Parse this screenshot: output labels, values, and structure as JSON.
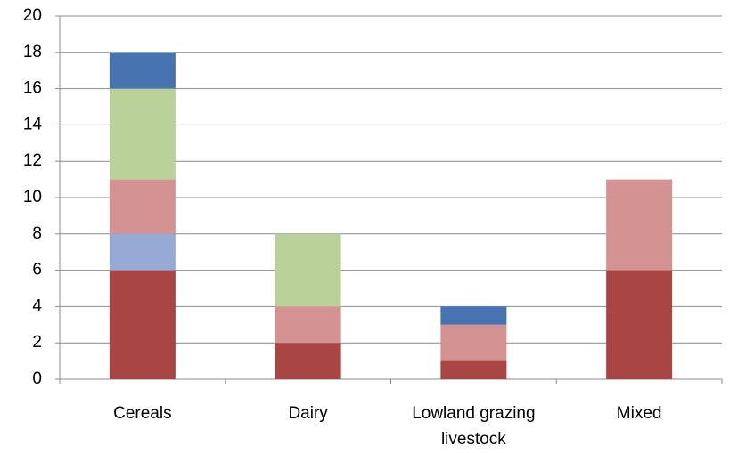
{
  "chart_data": {
    "type": "bar",
    "stacked": true,
    "categories": [
      "Cereals",
      "Dairy",
      "Lowland grazing livestock",
      "Mixed"
    ],
    "series": [
      {
        "color": "#a94543",
        "values": [
          6,
          2,
          1,
          6
        ]
      },
      {
        "color": "#95abd6",
        "values": [
          2,
          0,
          0,
          0
        ]
      },
      {
        "color": "#d49392",
        "values": [
          3,
          2,
          2,
          5
        ]
      },
      {
        "color": "#b9d098",
        "values": [
          5,
          4,
          0,
          0
        ]
      },
      {
        "color": "#4774b0",
        "values": [
          2,
          0,
          1,
          0
        ]
      }
    ],
    "ylim": [
      0,
      20
    ],
    "yticks": [
      0,
      2,
      4,
      6,
      8,
      10,
      12,
      14,
      16,
      18,
      20
    ],
    "grid": true
  }
}
